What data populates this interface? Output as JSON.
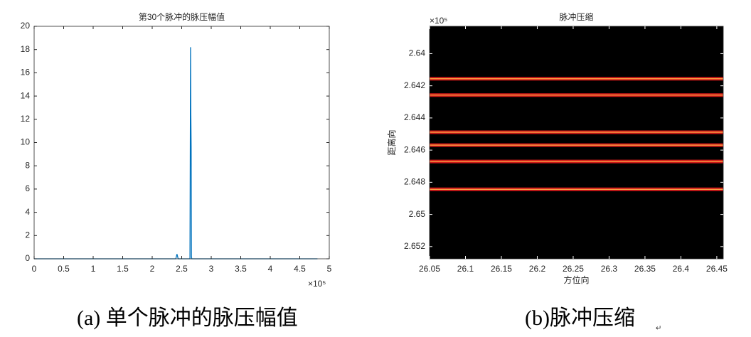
{
  "chart_data": [
    {
      "type": "line",
      "title": "第30个脉冲的脉压幅值",
      "x_exponent": "×10⁵",
      "x": [
        0,
        2.4,
        2.42,
        2.44,
        2.6,
        2.64,
        2.65,
        2.655,
        2.66,
        2.665,
        2.67,
        2.7,
        4.8
      ],
      "series": [
        {
          "color": "#0072bd",
          "values": [
            0,
            0,
            0.4,
            0,
            0,
            0,
            18.2,
            12.4,
            9.6,
            0.2,
            0,
            0,
            0
          ]
        }
      ],
      "xlim": [
        0,
        5
      ],
      "xticks": [
        0,
        0.5,
        1,
        1.5,
        2,
        2.5,
        3,
        3.5,
        4,
        4.5,
        5
      ],
      "ylim": [
        0,
        20
      ],
      "yticks": [
        0,
        2,
        4,
        6,
        8,
        10,
        12,
        14,
        16,
        18,
        20
      ]
    },
    {
      "type": "image",
      "title": "脉冲压缩",
      "y_exponent": "×10⁵",
      "xlabel": "方位向",
      "ylabel": "距离向",
      "background": "#000000",
      "color": "#d11a1a",
      "core_color": "#ffb347",
      "y_reversed": true,
      "values": [
        2.64156,
        2.64258,
        2.64489,
        2.64569,
        2.64671,
        2.64844
      ],
      "xlim": [
        26.05,
        26.459
      ],
      "xticks": [
        26.05,
        26.1,
        26.15,
        26.2,
        26.25,
        26.3,
        26.35,
        26.4,
        26.45
      ],
      "ylim": [
        2.6383,
        2.65276
      ],
      "yticks": [
        2.64,
        2.642,
        2.644,
        2.646,
        2.648,
        2.65,
        2.652
      ]
    }
  ],
  "captions": [
    "(a)  单个脉冲的脉压幅值",
    "(b)脉冲压缩"
  ],
  "caption_mark": "↵"
}
